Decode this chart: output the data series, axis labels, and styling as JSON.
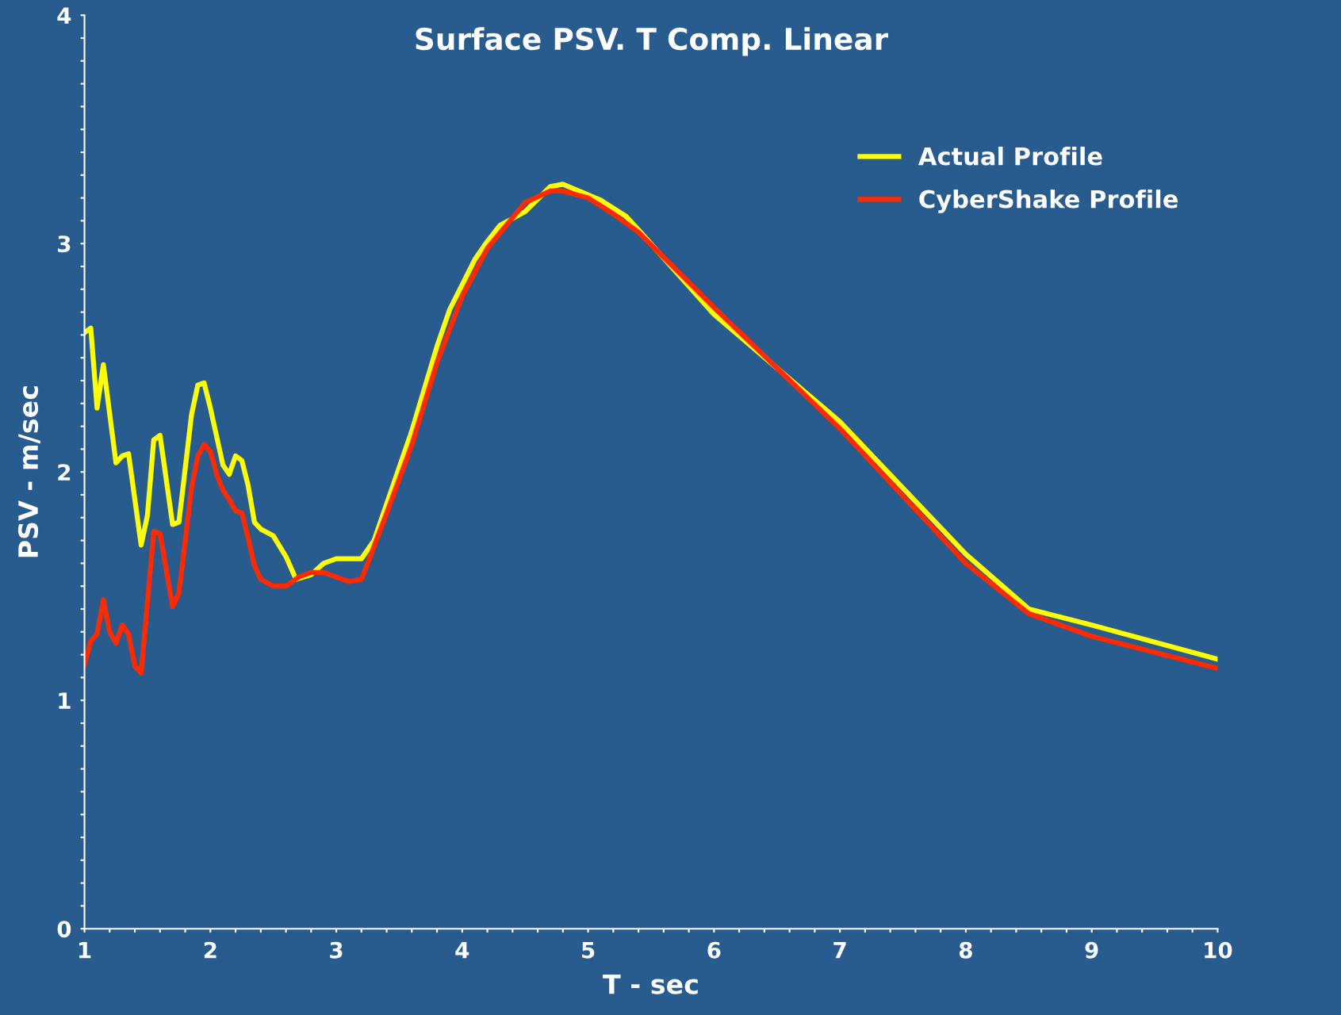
{
  "chart_data": {
    "type": "line",
    "title": "Surface PSV. T Comp. Linear",
    "xlabel": "T - sec",
    "ylabel": "PSV - m/sec",
    "xlim": [
      1,
      10
    ],
    "ylim": [
      0,
      4
    ],
    "xticks": [
      1,
      {
        "value": 1.2,
        "label": null
      },
      {
        "value": 1.4,
        "label": null
      },
      {
        "value": 1.6,
        "label": null
      },
      {
        "value": 1.8,
        "label": null
      },
      2,
      {
        "value": 2.2,
        "label": null
      },
      {
        "value": 2.4,
        "label": null
      },
      {
        "value": 2.6,
        "label": null
      },
      {
        "value": 2.8,
        "label": null
      },
      3,
      {
        "value": 3.2,
        "label": null
      },
      {
        "value": 3.4,
        "label": null
      },
      {
        "value": 3.6,
        "label": null
      },
      {
        "value": 3.8,
        "label": null
      },
      4,
      {
        "value": 4.2,
        "label": null
      },
      {
        "value": 4.4,
        "label": null
      },
      {
        "value": 4.6,
        "label": null
      },
      {
        "value": 4.8,
        "label": null
      },
      5,
      {
        "value": 5.2,
        "label": null
      },
      {
        "value": 5.4,
        "label": null
      },
      {
        "value": 5.6,
        "label": null
      },
      {
        "value": 5.8,
        "label": null
      },
      6,
      {
        "value": 6.2,
        "label": null
      },
      {
        "value": 6.4,
        "label": null
      },
      {
        "value": 6.6,
        "label": null
      },
      {
        "value": 6.8,
        "label": null
      },
      7,
      {
        "value": 7.2,
        "label": null
      },
      {
        "value": 7.4,
        "label": null
      },
      {
        "value": 7.6,
        "label": null
      },
      {
        "value": 7.8,
        "label": null
      },
      8,
      {
        "value": 8.2,
        "label": null
      },
      {
        "value": 8.4,
        "label": null
      },
      {
        "value": 8.6,
        "label": null
      },
      {
        "value": 8.8,
        "label": null
      },
      9,
      {
        "value": 9.2,
        "label": null
      },
      {
        "value": 9.4,
        "label": null
      },
      {
        "value": 9.6,
        "label": null
      },
      {
        "value": 9.8,
        "label": null
      },
      10
    ],
    "yticks": [
      0,
      {
        "value": 0.1,
        "label": null
      },
      {
        "value": 0.2,
        "label": null
      },
      {
        "value": 0.3,
        "label": null
      },
      {
        "value": 0.4,
        "label": null
      },
      {
        "value": 0.5,
        "label": null
      },
      {
        "value": 0.6,
        "label": null
      },
      {
        "value": 0.7,
        "label": null
      },
      {
        "value": 0.8,
        "label": null
      },
      {
        "value": 0.9,
        "label": null
      },
      1,
      {
        "value": 1.1,
        "label": null
      },
      {
        "value": 1.2,
        "label": null
      },
      {
        "value": 1.3,
        "label": null
      },
      {
        "value": 1.4,
        "label": null
      },
      {
        "value": 1.5,
        "label": null
      },
      {
        "value": 1.6,
        "label": null
      },
      {
        "value": 1.7,
        "label": null
      },
      {
        "value": 1.8,
        "label": null
      },
      {
        "value": 1.9,
        "label": null
      },
      2,
      {
        "value": 2.1,
        "label": null
      },
      {
        "value": 2.2,
        "label": null
      },
      {
        "value": 2.3,
        "label": null
      },
      {
        "value": 2.4,
        "label": null
      },
      {
        "value": 2.5,
        "label": null
      },
      {
        "value": 2.6,
        "label": null
      },
      {
        "value": 2.7,
        "label": null
      },
      {
        "value": 2.8,
        "label": null
      },
      {
        "value": 2.9,
        "label": null
      },
      3,
      {
        "value": 3.1,
        "label": null
      },
      {
        "value": 3.2,
        "label": null
      },
      {
        "value": 3.3,
        "label": null
      },
      {
        "value": 3.4,
        "label": null
      },
      {
        "value": 3.5,
        "label": null
      },
      {
        "value": 3.6,
        "label": null
      },
      {
        "value": 3.7,
        "label": null
      },
      {
        "value": 3.8,
        "label": null
      },
      {
        "value": 3.9,
        "label": null
      },
      4
    ],
    "grid": false,
    "legend": "top right",
    "marker": "none",
    "line_style": "solid",
    "series": [
      {
        "name": "Actual Profile",
        "color": "#ffff00",
        "x": [
          1.0,
          1.05,
          1.1,
          1.15,
          1.25,
          1.3,
          1.35,
          1.45,
          1.5,
          1.55,
          1.6,
          1.7,
          1.75,
          1.85,
          1.9,
          1.95,
          2.0,
          2.1,
          2.15,
          2.2,
          2.25,
          2.3,
          2.35,
          2.4,
          2.5,
          2.6,
          2.68,
          2.8,
          2.9,
          3.0,
          3.2,
          3.3,
          3.4,
          3.6,
          3.8,
          3.9,
          4.0,
          4.1,
          4.2,
          4.3,
          4.5,
          4.7,
          4.8,
          5.1,
          5.3,
          5.4,
          6.0,
          7.0,
          8.0,
          8.5,
          9.0,
          10.0
        ],
        "values": [
          2.61,
          2.63,
          2.28,
          2.47,
          2.04,
          2.07,
          2.08,
          1.68,
          1.81,
          2.14,
          2.16,
          1.77,
          1.78,
          2.25,
          2.38,
          2.39,
          2.28,
          2.03,
          1.99,
          2.07,
          2.05,
          1.94,
          1.78,
          1.75,
          1.72,
          1.63,
          1.53,
          1.55,
          1.6,
          1.62,
          1.62,
          1.7,
          1.86,
          2.18,
          2.55,
          2.71,
          2.82,
          2.93,
          3.01,
          3.08,
          3.14,
          3.25,
          3.26,
          3.19,
          3.12,
          3.06,
          2.69,
          2.22,
          1.64,
          1.4,
          1.33,
          1.18
        ]
      },
      {
        "name": "CyberShake Profile",
        "color": "#ff2a00",
        "x": [
          1.0,
          1.05,
          1.1,
          1.15,
          1.2,
          1.25,
          1.3,
          1.35,
          1.4,
          1.45,
          1.55,
          1.6,
          1.7,
          1.75,
          1.85,
          1.9,
          1.95,
          2.0,
          2.05,
          2.1,
          2.15,
          2.2,
          2.25,
          2.3,
          2.35,
          2.4,
          2.5,
          2.6,
          2.7,
          2.8,
          2.9,
          3.0,
          3.1,
          3.2,
          3.4,
          3.6,
          3.8,
          4.0,
          4.2,
          4.35,
          4.5,
          4.7,
          4.8,
          5.0,
          5.2,
          5.4,
          6.0,
          7.0,
          8.0,
          8.5,
          9.0,
          10.0
        ],
        "values": [
          1.16,
          1.26,
          1.29,
          1.44,
          1.3,
          1.25,
          1.33,
          1.29,
          1.15,
          1.12,
          1.74,
          1.73,
          1.41,
          1.47,
          1.93,
          2.07,
          2.12,
          2.09,
          1.99,
          1.92,
          1.88,
          1.83,
          1.82,
          1.71,
          1.59,
          1.53,
          1.5,
          1.5,
          1.54,
          1.56,
          1.56,
          1.54,
          1.52,
          1.53,
          1.82,
          2.12,
          2.48,
          2.77,
          2.98,
          3.08,
          3.18,
          3.23,
          3.23,
          3.2,
          3.13,
          3.05,
          2.72,
          2.19,
          1.6,
          1.38,
          1.28,
          1.14
        ]
      }
    ]
  }
}
